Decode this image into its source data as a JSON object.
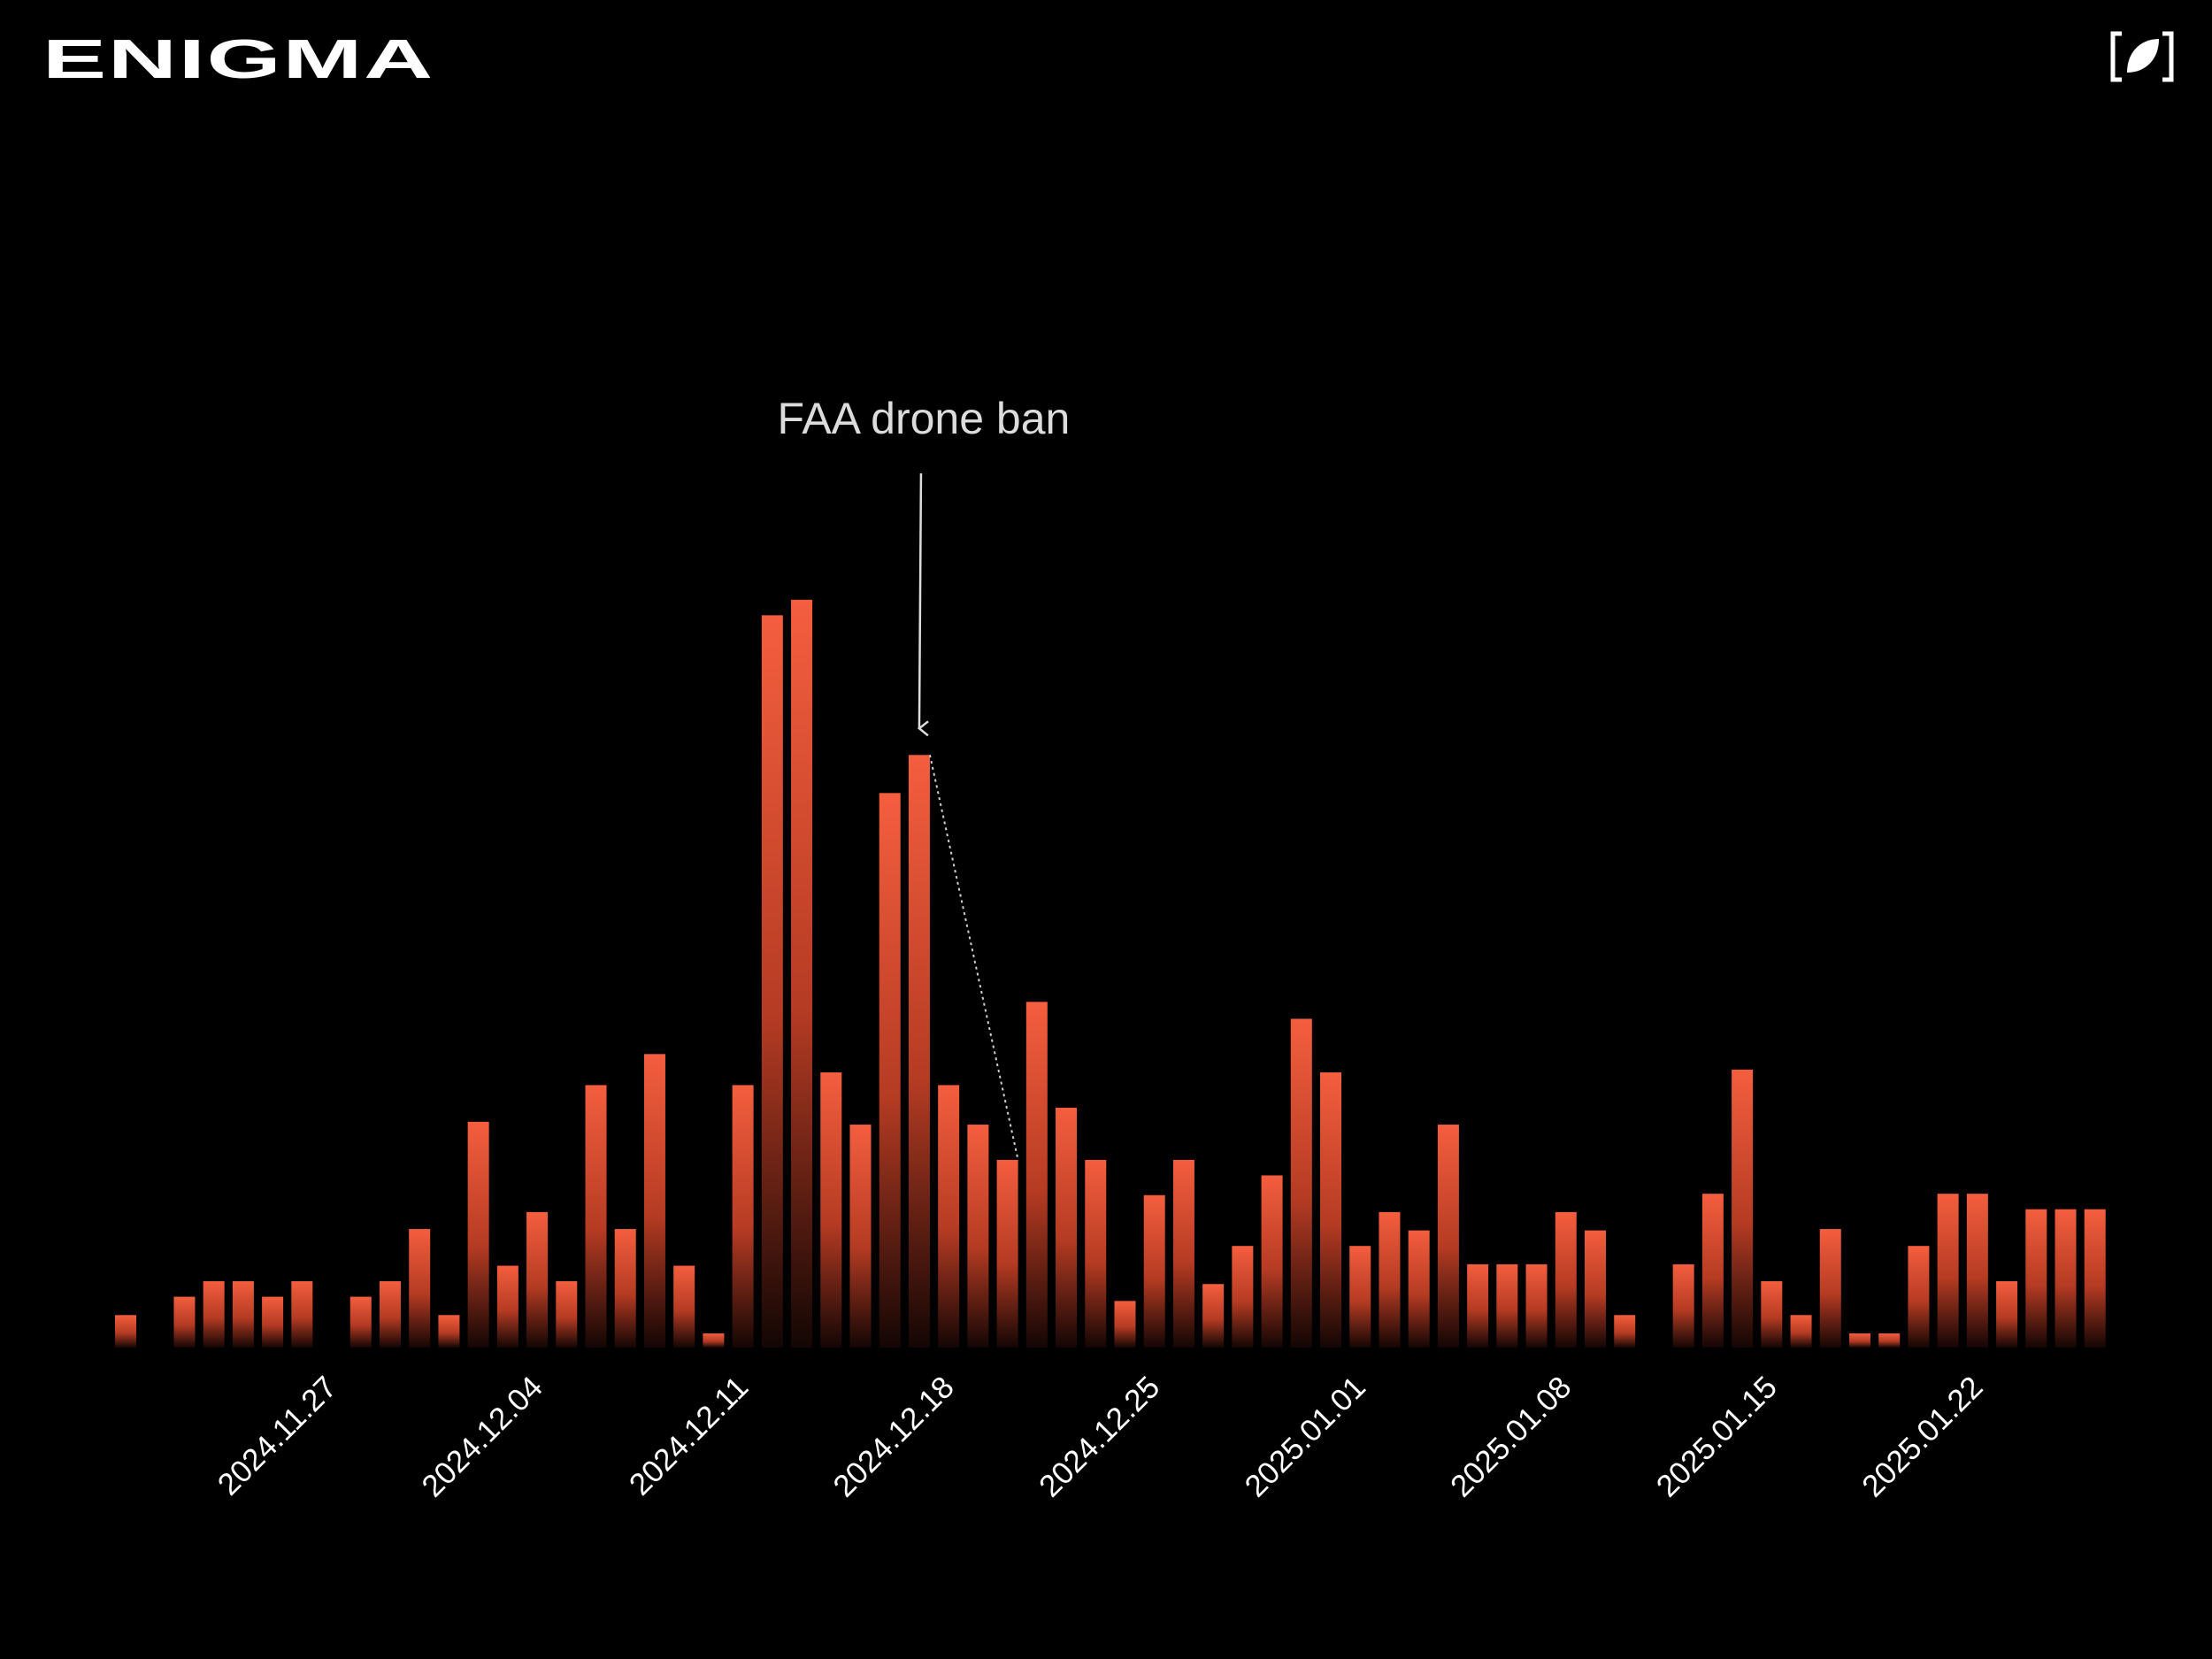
{
  "header": {
    "logo": "ENIGMA"
  },
  "chart_data": {
    "type": "bar",
    "categories": [
      null,
      null,
      null,
      null,
      null,
      null,
      null,
      "2024.11.27",
      null,
      null,
      null,
      null,
      null,
      null,
      "2024.12.04",
      null,
      null,
      null,
      null,
      null,
      null,
      "2024.12.11",
      null,
      null,
      null,
      null,
      null,
      null,
      "2024.12.18",
      null,
      null,
      null,
      null,
      null,
      null,
      "2024.12.25",
      null,
      null,
      null,
      null,
      null,
      null,
      "2025.01.01",
      null,
      null,
      null,
      null,
      null,
      null,
      "2025.01.08",
      null,
      null,
      null,
      null,
      null,
      null,
      "2025.01.15",
      null,
      null,
      null,
      null,
      null,
      null,
      "2025.01.22",
      null,
      null,
      null,
      null
    ],
    "values": [
      23,
      null,
      36,
      47,
      47,
      36,
      47,
      null,
      36,
      47,
      84,
      23,
      160,
      58,
      96,
      47,
      186,
      84,
      208,
      58,
      10,
      186,
      519,
      530,
      195,
      158,
      393,
      420,
      186,
      158,
      133,
      245,
      170,
      133,
      33,
      108,
      133,
      45,
      72,
      122,
      233,
      195,
      72,
      96,
      83,
      158,
      59,
      59,
      59,
      96,
      83,
      23,
      null,
      59,
      109,
      197,
      47,
      23,
      84,
      10,
      10,
      72,
      109,
      109,
      47,
      98,
      98,
      98
    ],
    "color": "#f25a3c",
    "ylim": [
      0,
      560
    ],
    "annotations": [
      {
        "text": "FAA drone ban",
        "index": 27,
        "trend_to": 30
      }
    ]
  }
}
